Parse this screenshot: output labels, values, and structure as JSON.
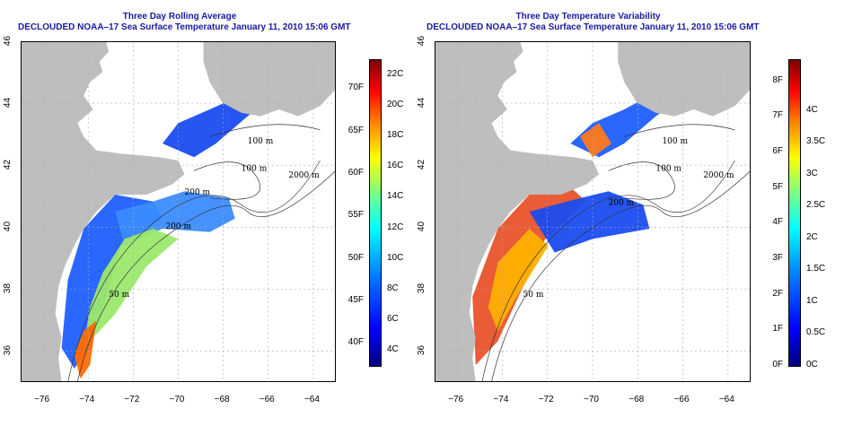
{
  "panels": [
    {
      "id": "left",
      "title": "Three Day Rolling Average",
      "subtitle": "DECLOUDED NOAA–17 Sea Surface Temperature January 11, 2010 15:06 GMT",
      "colorbar": {
        "f_labels": [
          "40F",
          "45F",
          "50F",
          "55F",
          "60F",
          "65F",
          "70F"
        ],
        "c_labels": [
          "4C",
          "6C",
          "8C",
          "10C",
          "12C",
          "14C",
          "16C",
          "18C",
          "20C",
          "22C"
        ]
      }
    },
    {
      "id": "right",
      "title": "Three Day Temperature Variability",
      "subtitle": "DECLOUDED NOAA–17 Sea Surface Temperature January 11, 2010 15:06 GMT",
      "colorbar": {
        "f_labels": [
          "0F",
          "1F",
          "2F",
          "3F",
          "4F",
          "5F",
          "6F",
          "7F",
          "8F"
        ],
        "c_labels": [
          "0C",
          "0.5C",
          "1C",
          "1.5C",
          "2C",
          "2.5C",
          "3C",
          "3.5C",
          "4C"
        ]
      }
    }
  ],
  "axes": {
    "x_ticks": [
      "−76",
      "−74",
      "−72",
      "−70",
      "−68",
      "−66",
      "−64"
    ],
    "y_ticks": [
      "36",
      "38",
      "40",
      "42",
      "44",
      "46"
    ]
  },
  "contour_labels": {
    "left": [
      "100 m",
      "2000 m",
      "100 m",
      "200 m",
      "200 m",
      "50 m"
    ],
    "right": [
      "100 m",
      "2000 m",
      "100 m",
      "200 m",
      "50 m"
    ]
  },
  "colors": {
    "land": "#bebebe",
    "ocean_nodata": "#ffffff",
    "title_color": "#1a1aa0",
    "grid": "#aaaaaa"
  },
  "chart_data": [
    {
      "type": "heatmap",
      "title": "Three Day Rolling Average",
      "xlabel": "",
      "ylabel": "",
      "xlim": [
        -77,
        -63
      ],
      "ylim": [
        35,
        46
      ],
      "x_ticks": [
        -76,
        -74,
        -72,
        -70,
        -68,
        -66,
        -64
      ],
      "y_ticks": [
        36,
        38,
        40,
        42,
        44,
        46
      ],
      "grid": true,
      "colorscale": "jet",
      "colorbar_range_C": [
        3,
        23
      ],
      "colorbar_range_F": [
        37.4,
        73.4
      ]
    },
    {
      "type": "heatmap",
      "title": "Three Day Temperature Variability",
      "xlabel": "",
      "ylabel": "",
      "xlim": [
        -77,
        -63
      ],
      "ylim": [
        35,
        46
      ],
      "x_ticks": [
        -76,
        -74,
        -72,
        -70,
        -68,
        -66,
        -64
      ],
      "y_ticks": [
        36,
        38,
        40,
        42,
        44,
        46
      ],
      "grid": true,
      "colorscale": "jet",
      "colorbar_range_C": [
        0,
        4.8
      ],
      "colorbar_range_F": [
        0,
        8.6
      ]
    }
  ]
}
